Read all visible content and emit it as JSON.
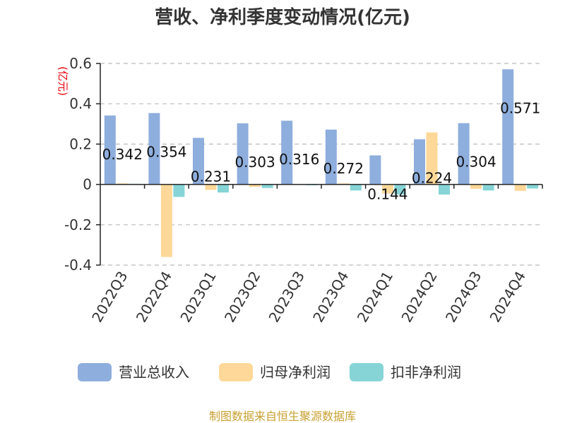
{
  "title": "营收、净利季度变动情况(亿元)",
  "unit_label": "(亿元)",
  "source": "制图数据来自恒生聚源数据库",
  "chart_data": {
    "type": "bar",
    "title": "营收、净利季度变动情况(亿元)",
    "ylabel": "(亿元)",
    "xlabel": "",
    "categories": [
      "2022Q3",
      "2022Q4",
      "2023Q1",
      "2023Q2",
      "2023Q3",
      "2023Q4",
      "2024Q1",
      "2024Q2",
      "2024Q3",
      "2024Q4"
    ],
    "ylim": [
      -0.4,
      0.6
    ],
    "yticks": [
      -0.4,
      -0.2,
      0,
      0.2,
      0.4,
      0.6
    ],
    "ytick_labels": [
      "-0.4",
      "-0.2",
      "0",
      "0.2",
      "0.4",
      "0.6"
    ],
    "grid": true,
    "legend_position": "bottom",
    "series": [
      {
        "name": "营业总收入",
        "color": "#8eaedd",
        "values": [
          0.342,
          0.354,
          0.231,
          0.303,
          0.316,
          0.272,
          0.144,
          0.224,
          0.304,
          0.571
        ],
        "labels": [
          "0.342",
          "0.354",
          "0.231",
          "0.303",
          "0.316",
          "0.272",
          "0.144",
          "0.224",
          "0.304",
          "0.571"
        ]
      },
      {
        "name": "归母净利润",
        "color": "#fdd898",
        "values": [
          0.005,
          -0.36,
          -0.027,
          -0.012,
          0.002,
          0.005,
          -0.045,
          0.258,
          -0.022,
          -0.032
        ]
      },
      {
        "name": "扣非净利润",
        "color": "#86d4d6",
        "values": [
          0.003,
          -0.062,
          -0.04,
          -0.018,
          -0.004,
          -0.03,
          -0.05,
          -0.05,
          -0.03,
          -0.02
        ]
      }
    ]
  }
}
